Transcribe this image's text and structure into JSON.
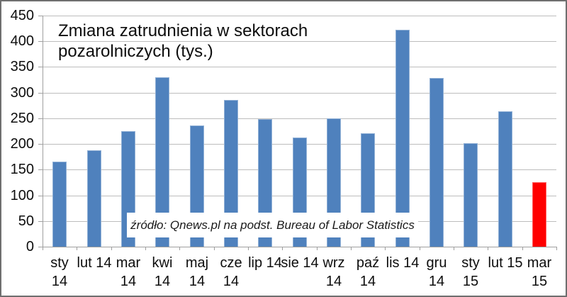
{
  "chart_data": {
    "type": "bar",
    "title": "Zmiana zatrudnienia w sektorach pozarolniczych (tys.)",
    "title_lines": [
      "Zmiana zatrudnienia w sektorach",
      "pozarolniczych (tys.)"
    ],
    "source_note": "źródło: Qnews.pl na podst. Bureau of Labor Statistics",
    "categories": [
      "sty\n14",
      "lut 14",
      "mar\n14",
      "kwi\n14",
      "maj\n14",
      "cze\n14",
      "lip 14",
      "sie 14",
      "wrz\n14",
      "paź\n14",
      "lis 14",
      "gru\n14",
      "sty\n15",
      "lut 15",
      "mar\n15"
    ],
    "values": [
      166,
      188,
      225,
      330,
      236,
      286,
      249,
      213,
      250,
      221,
      423,
      329,
      201,
      264,
      126
    ],
    "ylim": [
      0,
      450
    ],
    "ytick_step": 50,
    "yticks": [
      0,
      50,
      100,
      150,
      200,
      250,
      300,
      350,
      400,
      450
    ],
    "grid": "horizontal",
    "legend": "none",
    "bar_color": "#4f81bd",
    "highlight_index": 14,
    "highlight_color": "#ff0000",
    "gridline_color": "#bdbdbd",
    "axis_color": "#9f9f9f",
    "background_color": "#ffffff"
  }
}
